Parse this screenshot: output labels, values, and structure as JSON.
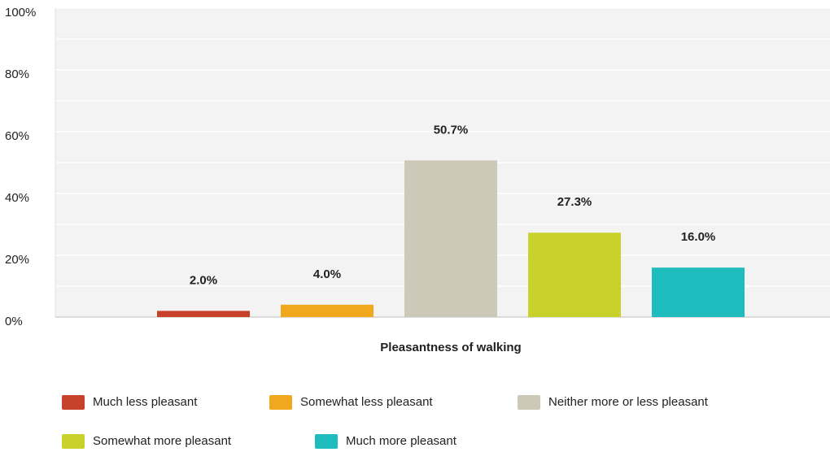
{
  "chart_data": {
    "type": "bar",
    "categories": [
      "Pleasantness of walking"
    ],
    "series": [
      {
        "name": "Much less pleasant",
        "color": "#c8412a",
        "values": [
          2.0
        ],
        "value_labels": [
          "2.0%"
        ]
      },
      {
        "name": "Somewhat less pleasant",
        "color": "#f0a81d",
        "values": [
          4.0
        ],
        "value_labels": [
          "4.0%"
        ]
      },
      {
        "name": "Neither more or less pleasant",
        "color": "#ccc9b8",
        "values": [
          50.7
        ],
        "value_labels": [
          "50.7%"
        ]
      },
      {
        "name": "Somewhat more pleasant",
        "color": "#c9d22b",
        "values": [
          27.3
        ],
        "value_labels": [
          "27.3%"
        ]
      },
      {
        "name": "Much more pleasant",
        "color": "#1fbcbd",
        "values": [
          16.0
        ],
        "value_labels": [
          "16.0%"
        ]
      }
    ],
    "ylim": [
      0,
      100
    ],
    "yticks": [
      {
        "value": 0,
        "label": "0%"
      },
      {
        "value": 20,
        "label": "20%"
      },
      {
        "value": 40,
        "label": "40%"
      },
      {
        "value": 60,
        "label": "60%"
      },
      {
        "value": 80,
        "label": "80%"
      },
      {
        "value": 100,
        "label": "100%"
      }
    ],
    "minor_yticks": [
      10,
      30,
      50,
      70,
      90
    ],
    "grid": true,
    "legend": "bottom"
  }
}
